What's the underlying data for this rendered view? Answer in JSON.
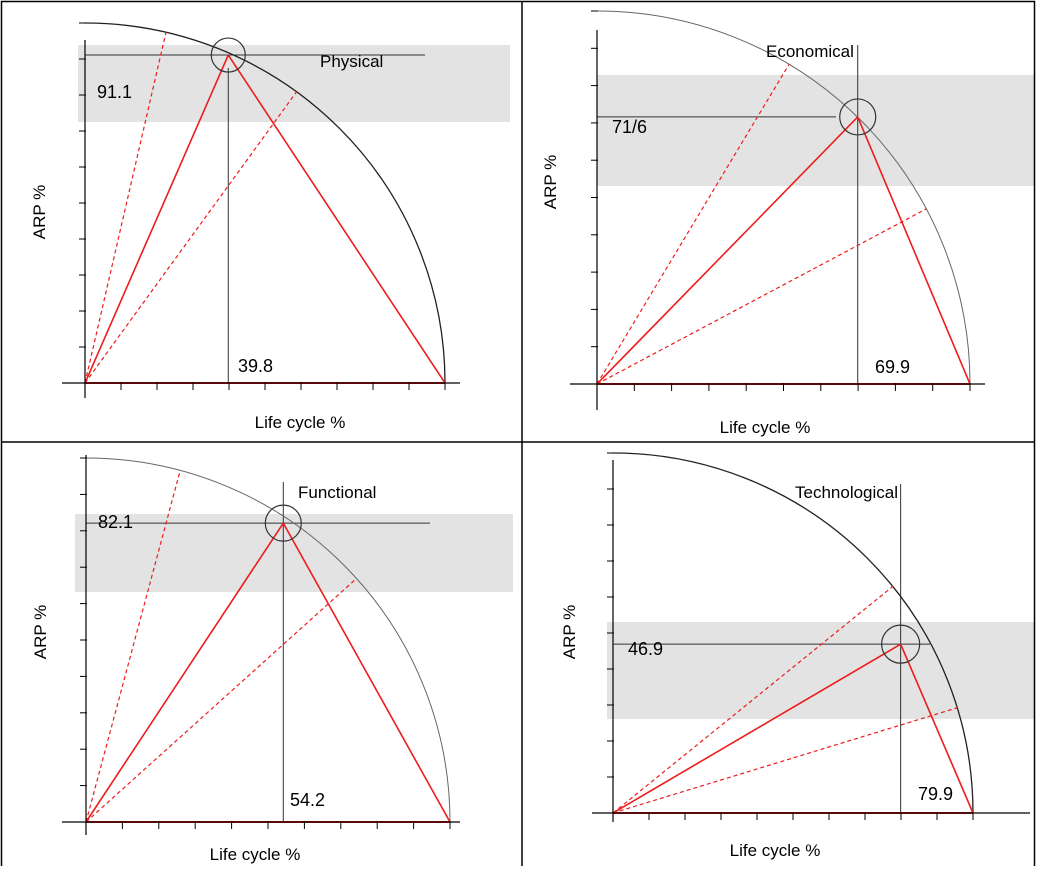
{
  "panels": [
    {
      "id": "physical",
      "title": "Physical",
      "y_value_label": "91.1",
      "x_value_label": "39.8",
      "y_axis_label": "ARP %",
      "x_axis_label": "Life cycle %",
      "point": {
        "life_cycle_pct": 39.8,
        "arp_pct": 91.1
      },
      "band_pct": [
        72,
        100
      ]
    },
    {
      "id": "economical",
      "title": "Economical",
      "y_value_label": "71/6",
      "x_value_label": "69.9",
      "y_axis_label": "ARP %",
      "x_axis_label": "Life cycle %",
      "point": {
        "life_cycle_pct": 69.9,
        "arp_pct": 71.6
      },
      "band_pct": [
        58,
        89
      ]
    },
    {
      "id": "functional",
      "title": "Functional",
      "y_value_label": "82.1",
      "x_value_label": "54.2",
      "y_axis_label": "ARP %",
      "x_axis_label": "Life cycle %",
      "point": {
        "life_cycle_pct": 54.2,
        "arp_pct": 82.1
      },
      "band_pct": [
        64,
        86
      ]
    },
    {
      "id": "technological",
      "title": "Technological",
      "y_value_label": "46.9",
      "x_value_label": "79.9",
      "y_axis_label": "ARP %",
      "x_axis_label": "Life cycle %",
      "point": {
        "life_cycle_pct": 79.9,
        "arp_pct": 46.9
      },
      "band_pct": [
        27,
        56
      ]
    }
  ],
  "colors": {
    "band": "#e3e3e3",
    "red": "#ee1c1c",
    "axis": "#000000",
    "frame": "#000000"
  }
}
